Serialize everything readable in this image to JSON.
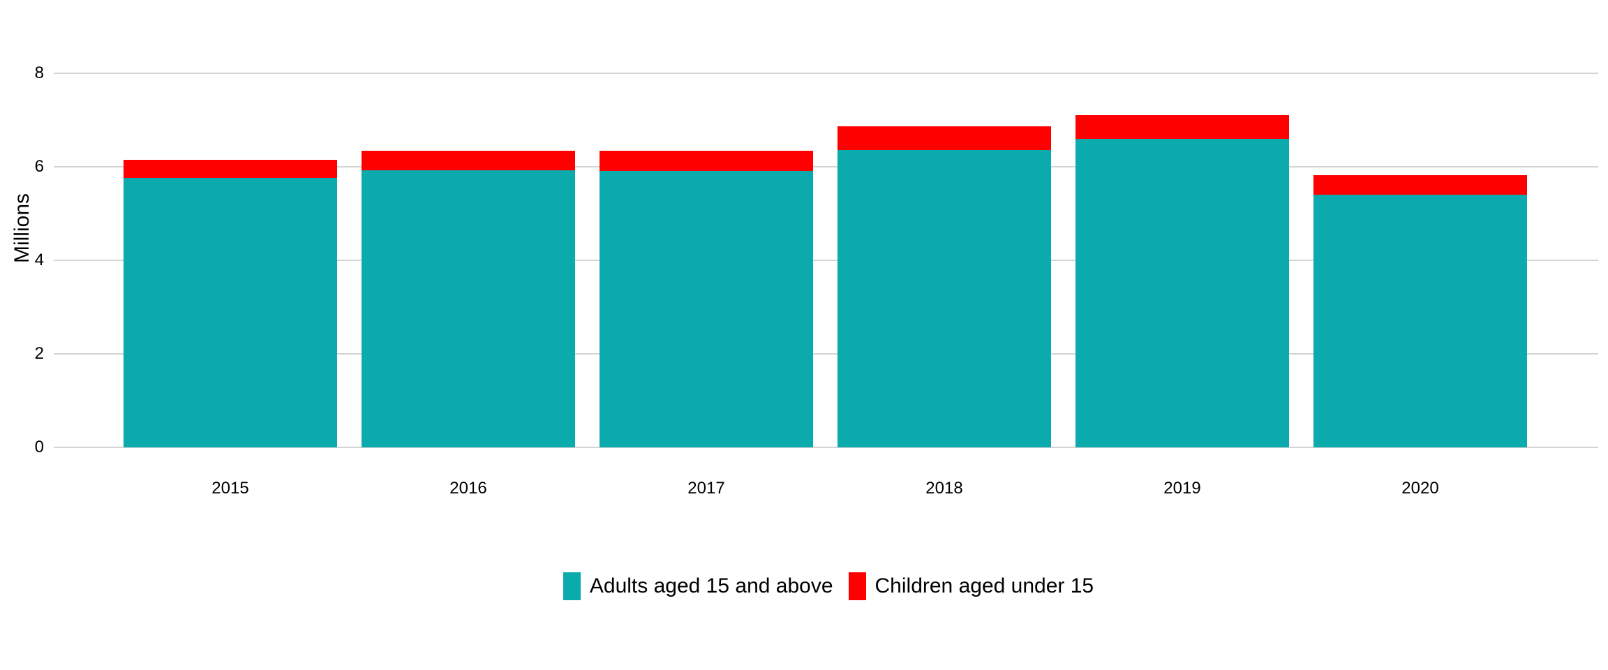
{
  "chart_data": {
    "type": "bar",
    "stacked": true,
    "title": "",
    "xlabel": "",
    "ylabel": "Millions",
    "categories": [
      "2015",
      "2016",
      "2017",
      "2018",
      "2019",
      "2020"
    ],
    "series": [
      {
        "name": "Adults aged 15 and above",
        "color": "#0BAAAD",
        "values": [
          5.76,
          5.92,
          5.91,
          6.36,
          6.6,
          5.41
        ]
      },
      {
        "name": "Children aged under 15",
        "color": "#FF0000",
        "values": [
          0.39,
          0.43,
          0.43,
          0.51,
          0.51,
          0.41
        ]
      }
    ],
    "totals": [
      6.15,
      6.35,
      6.34,
      6.87,
      7.11,
      5.82
    ],
    "ylim": [
      0,
      8
    ],
    "yticks": [
      0,
      2,
      4,
      6,
      8
    ],
    "grid": true,
    "legend_position": "bottom",
    "gridline_color": "#D4D4D4",
    "text_color": "#000000",
    "background_color": "#FFFFFF"
  }
}
